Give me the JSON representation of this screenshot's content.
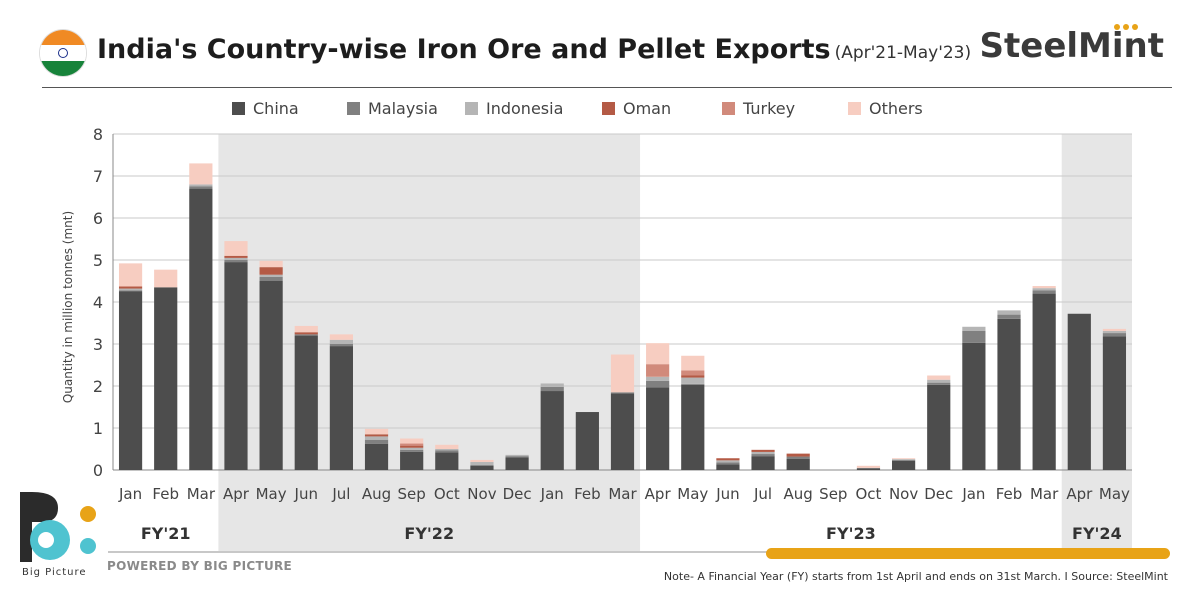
{
  "header": {
    "title": "India's Country-wise Iron Ore and Pellet Exports",
    "period": "(Apr'21-May'23)",
    "brand": "SteelMint",
    "flag_icon": "india-flag-icon"
  },
  "footer": {
    "logo_text": "Big Picture",
    "powered_by": "POWERED BY BIG PICTURE",
    "note": "Note- A Financial Year (FY) starts from 1st April and ends on 31st March.  I  Source: SteelMint"
  },
  "colors": {
    "China": "#4d4d4d",
    "Malaysia": "#808080",
    "Indonesia": "#b5b5b5",
    "Oman": "#b45a45",
    "Turkey": "#d18a7b",
    "Others": "#f7cdc1",
    "shade": "#e6e6e6",
    "accent": "#e8a317"
  },
  "chart_data": {
    "type": "bar",
    "stacked": true,
    "ylabel": "Quantity in million tonnes (mnt)",
    "ylim": [
      0,
      8
    ],
    "yticks": [
      0,
      1,
      2,
      3,
      4,
      5,
      6,
      7,
      8
    ],
    "grid": true,
    "legend_position": "top",
    "categories": [
      "Jan",
      "Feb",
      "Mar",
      "Apr",
      "May",
      "Jun",
      "Jul",
      "Aug",
      "Sep",
      "Oct",
      "Nov",
      "Dec",
      "Jan",
      "Feb",
      "Mar",
      "Apr",
      "May",
      "Jun",
      "Jul",
      "Aug",
      "Sep",
      "Oct",
      "Nov",
      "Dec",
      "Jan",
      "Feb",
      "Mar",
      "Apr",
      "May"
    ],
    "fiscal_years": [
      {
        "label": "FY'21",
        "start": 0,
        "end": 2,
        "shaded": false
      },
      {
        "label": "FY'22",
        "start": 3,
        "end": 14,
        "shaded": true
      },
      {
        "label": "FY'23",
        "start": 15,
        "end": 26,
        "shaded": false
      },
      {
        "label": "FY'24",
        "start": 27,
        "end": 28,
        "shaded": true
      }
    ],
    "series": [
      {
        "name": "China",
        "values": [
          4.25,
          4.35,
          6.7,
          4.95,
          4.5,
          3.2,
          2.95,
          0.62,
          0.43,
          0.42,
          0.1,
          0.3,
          1.88,
          1.38,
          1.82,
          1.97,
          2.03,
          0.13,
          0.33,
          0.27,
          0.0,
          0.04,
          0.22,
          2.03,
          3.03,
          3.6,
          4.2,
          3.72,
          3.18
        ]
      },
      {
        "name": "Malaysia",
        "values": [
          0.03,
          0.0,
          0.05,
          0.05,
          0.1,
          0.03,
          0.05,
          0.1,
          0.05,
          0.05,
          0.02,
          0.03,
          0.1,
          0.0,
          0.03,
          0.15,
          0.02,
          0.05,
          0.05,
          0.05,
          0.0,
          0.01,
          0.02,
          0.05,
          0.28,
          0.1,
          0.08,
          0.0,
          0.08
        ]
      },
      {
        "name": "Indonesia",
        "values": [
          0.04,
          0.0,
          0.05,
          0.05,
          0.05,
          0.0,
          0.1,
          0.08,
          0.05,
          0.03,
          0.07,
          0.03,
          0.08,
          0.0,
          0.0,
          0.1,
          0.15,
          0.05,
          0.05,
          0.0,
          0.0,
          0.0,
          0.02,
          0.07,
          0.1,
          0.1,
          0.05,
          0.0,
          0.05
        ]
      },
      {
        "name": "Oman",
        "values": [
          0.05,
          0.0,
          0.0,
          0.05,
          0.18,
          0.05,
          0.0,
          0.05,
          0.05,
          0.0,
          0.0,
          0.0,
          0.0,
          0.0,
          0.0,
          0.0,
          0.05,
          0.05,
          0.05,
          0.07,
          0.0,
          0.0,
          0.0,
          0.0,
          0.0,
          0.0,
          0.0,
          0.0,
          0.0
        ]
      },
      {
        "name": "Turkey",
        "values": [
          0.0,
          0.0,
          0.0,
          0.0,
          0.0,
          0.0,
          0.0,
          0.0,
          0.05,
          0.0,
          0.0,
          0.0,
          0.0,
          0.0,
          0.0,
          0.3,
          0.12,
          0.0,
          0.0,
          0.0,
          0.0,
          0.0,
          0.0,
          0.0,
          0.0,
          0.0,
          0.0,
          0.0,
          0.0
        ]
      },
      {
        "name": "Others",
        "values": [
          0.55,
          0.42,
          0.5,
          0.35,
          0.15,
          0.15,
          0.13,
          0.13,
          0.12,
          0.1,
          0.05,
          0.0,
          0.0,
          0.0,
          0.9,
          0.5,
          0.35,
          0.0,
          0.0,
          0.0,
          0.0,
          0.05,
          0.02,
          0.1,
          0.0,
          0.0,
          0.05,
          0.0,
          0.05
        ]
      }
    ]
  }
}
